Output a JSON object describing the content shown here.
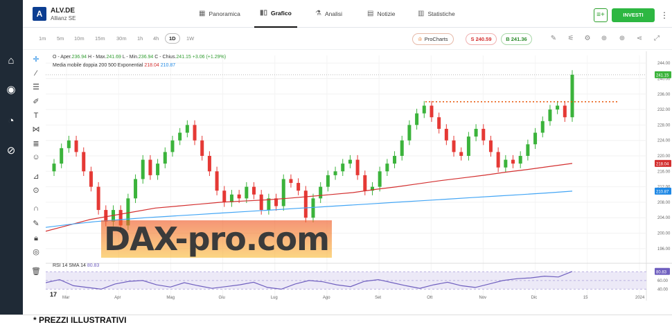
{
  "header": {
    "logo_letter": "A",
    "ticker": "ALV.DE",
    "company": "Allianz SE",
    "tabs": [
      {
        "label": "Panoramica",
        "icon": "grid-icon"
      },
      {
        "label": "Grafico",
        "icon": "candles-icon"
      },
      {
        "label": "Analisi",
        "icon": "flask-icon"
      },
      {
        "label": "Notizie",
        "icon": "news-icon"
      },
      {
        "label": "Statistiche",
        "icon": "stats-icon"
      }
    ],
    "active_tab": "Grafico",
    "invest_label": "INVESTI"
  },
  "toolbar": {
    "timeframes": [
      "1m",
      "5m",
      "10m",
      "15m",
      "30m",
      "1h",
      "4h",
      "1D",
      "1W"
    ],
    "active_timeframe": "1D",
    "prochart_label": "ProCharts",
    "sell_label": "S 240.59",
    "buy_label": "B 241.36"
  },
  "legend": {
    "ohlc_open": "O - Aper.",
    "open": "236.94",
    "high_label": "H - Max.",
    "high": "241.69",
    "low_label": "L - Min.",
    "low": "236.94",
    "close_label": "C - Chius.",
    "close": "241.15",
    "change": "+3.06 (+1.29%)",
    "ma_label": "Media mobile doppia 200 500 Exponential",
    "ma200": "218.04",
    "ma500": "210.87",
    "rsi_label": "RSI 14 SMA 14",
    "rsi_value": "80.83"
  },
  "watermark": "DAX-pro.com",
  "footnote": "* PREZZI ILLUSTRATIVI",
  "colors": {
    "up": "#3bb33b",
    "down": "#e53935",
    "ma200": "#d32f2f",
    "ma500": "#42a5f5",
    "rsi": "#6f5fbf",
    "resistance": "#e65100"
  },
  "chart_data": {
    "type": "line",
    "title": "",
    "x_ticks": [
      "Mar",
      "Apr",
      "Mag",
      "Giu",
      "Lug",
      "Ago",
      "Set",
      "Ott",
      "Nov",
      "Dic",
      "15",
      "2024"
    ],
    "y_ticks": [
      196,
      200,
      204,
      208,
      212,
      216,
      220,
      224,
      228,
      232,
      236,
      240,
      244
    ],
    "ylim": [
      194,
      246
    ],
    "price_labels": {
      "last": "241.15",
      "ma200": "218.04",
      "ma500": "210.87"
    },
    "resistance_level": 234,
    "series": [
      {
        "name": "Close",
        "values": [
          218,
          222,
          224,
          221,
          216,
          212,
          206,
          203,
          206,
          202,
          209,
          214,
          219,
          215,
          218,
          221,
          224,
          226,
          228,
          224,
          220,
          216,
          211,
          208,
          210,
          209,
          212,
          210,
          206,
          209,
          207,
          214,
          213,
          211,
          204,
          209,
          212,
          215,
          216,
          218,
          219,
          215,
          211,
          212,
          216,
          218,
          220,
          224,
          228,
          231,
          233,
          230,
          227,
          224,
          221,
          220,
          225,
          227,
          224,
          221,
          217,
          219,
          218,
          220,
          223,
          226,
          229,
          232,
          233,
          230,
          241
        ]
      },
      {
        "name": "Media mobile 200",
        "values": [
          200.5,
          202,
          203.5,
          204.5,
          205.5,
          206.5,
          207,
          207.5,
          208,
          208.3,
          208.6,
          209,
          209.5,
          210,
          210.5,
          211.3,
          212,
          212.8,
          213.6,
          214.3,
          215,
          215.8,
          216.5,
          217.3,
          218.04
        ]
      },
      {
        "name": "Media mobile 500",
        "values": [
          201.5,
          202.3,
          203,
          203.5,
          204,
          204.4,
          204.8,
          205.2,
          205.6,
          206,
          206.4,
          206.8,
          207.2,
          207.6,
          208,
          208.4,
          208.8,
          209.2,
          209.6,
          210,
          210.4,
          210.87
        ]
      },
      {
        "name": "RSI 14",
        "values": [
          55,
          62,
          48,
          44,
          40,
          52,
          58,
          60,
          50,
          45,
          55,
          48,
          42,
          46,
          50,
          56,
          44,
          40,
          52,
          60,
          57,
          50,
          46,
          58,
          62,
          55,
          48,
          42,
          50,
          56,
          48,
          44,
          52,
          60,
          64,
          66,
          70,
          68,
          80.83
        ]
      }
    ],
    "rsi_ticks": [
      40,
      60,
      80
    ],
    "grid": true
  }
}
